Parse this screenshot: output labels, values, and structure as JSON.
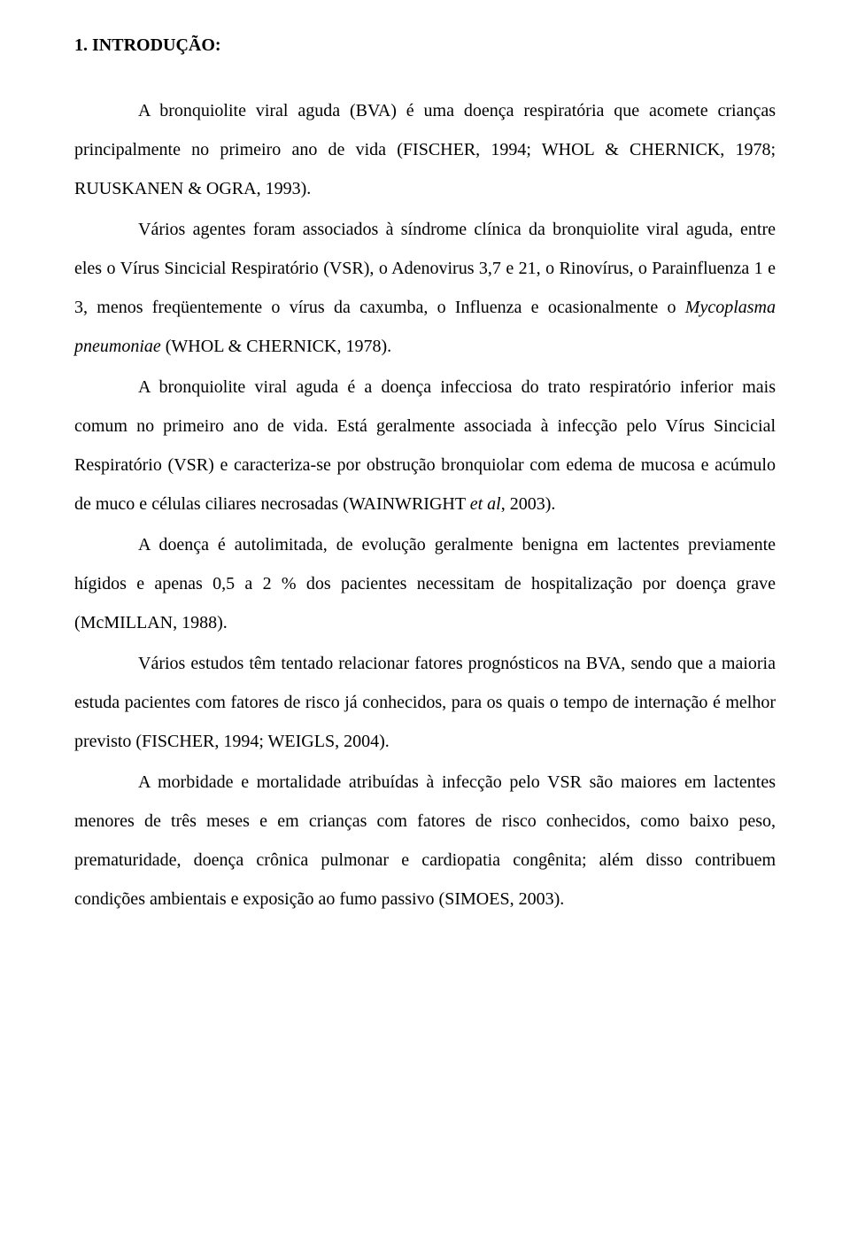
{
  "heading": "1. INTRODUÇÃO:",
  "paragraphs": {
    "p1": "A bronquiolite viral aguda (BVA) é uma doença respiratória que acomete crianças principalmente no primeiro ano de vida (FISCHER, 1994; WHOL & CHERNICK, 1978; RUUSKANEN & OGRA, 1993).",
    "p2a": "Vários agentes foram associados à síndrome clínica da bronquiolite viral aguda, entre eles o Vírus Sincicial Respiratório (VSR), o Adenovirus 3,7 e 21, o Rinovírus, o Parainfluenza 1 e 3, menos freqüentemente o vírus da caxumba, o Influenza e ocasionalmente o ",
    "p2_italic": "Mycoplasma pneumoniae",
    "p2b": " (WHOL & CHERNICK, 1978).",
    "p3a": "A bronquiolite viral aguda é a doença infecciosa do trato respiratório inferior mais comum no primeiro ano de vida. Está geralmente associada à infecção pelo Vírus Sincicial Respiratório (VSR) e caracteriza-se por obstrução bronquiolar com edema de mucosa e acúmulo de muco e células ciliares necrosadas (WAINWRIGHT ",
    "p3_italic": "et al",
    "p3b": ", 2003).",
    "p4": "A doença é autolimitada, de evolução geralmente benigna em lactentes previamente hígidos e apenas 0,5 a 2 % dos pacientes necessitam de hospitalização por doença grave (McMILLAN, 1988).",
    "p5": "Vários estudos têm tentado relacionar fatores prognósticos na BVA, sendo que a maioria estuda pacientes com fatores de risco já conhecidos, para os quais o tempo de internação é melhor previsto (FISCHER, 1994; WEIGLS, 2004).",
    "p6": "A morbidade e mortalidade atribuídas à infecção pelo VSR são maiores em lactentes menores de três meses e em crianças com fatores de risco conhecidos, como baixo peso, prematuridade, doença crônica pulmonar e cardiopatia congênita; além disso contribuem condições ambientais e exposição ao fumo passivo (SIMOES, 2003)."
  }
}
